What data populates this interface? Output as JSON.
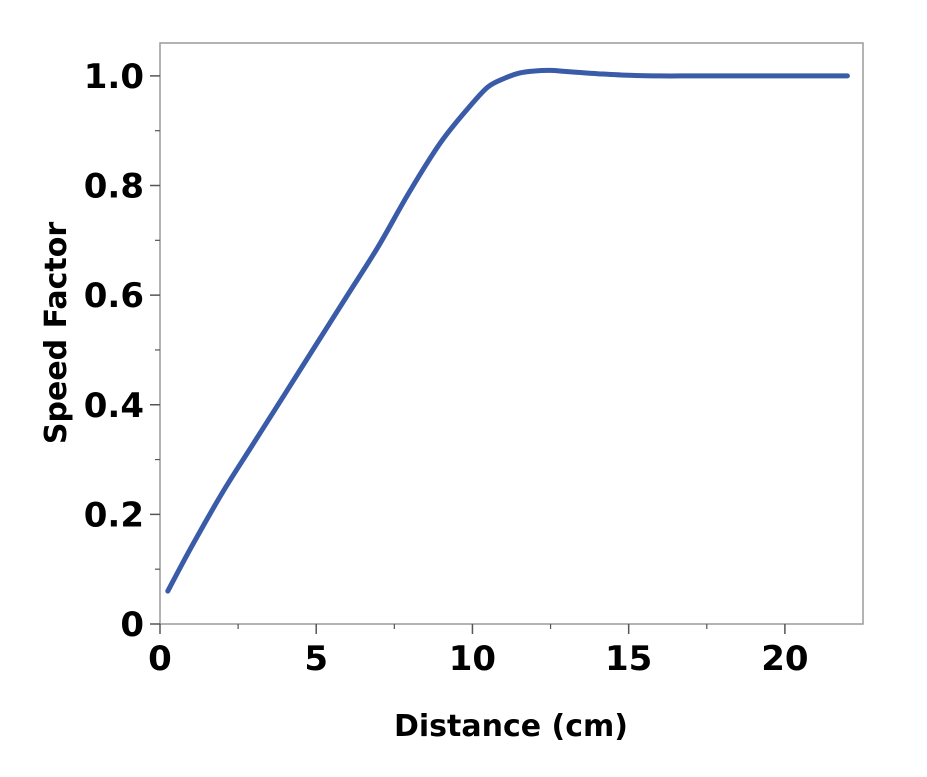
{
  "chart_data": {
    "type": "line",
    "title": "",
    "xlabel": "Distance (cm)",
    "ylabel": "Speed Factor",
    "xlim": [
      0,
      22.5
    ],
    "ylim": [
      0,
      1.06
    ],
    "x_ticks": [
      0,
      5,
      10,
      15,
      20
    ],
    "x_tick_labels": [
      "0",
      "5",
      "10",
      "15",
      "20"
    ],
    "y_ticks": [
      0,
      0.2,
      0.4,
      0.6,
      0.8,
      1.0
    ],
    "y_tick_labels": [
      "0",
      "0.2",
      "0.4",
      "0.6",
      "0.8",
      "1.0"
    ],
    "grid": false,
    "legend": false,
    "series": [
      {
        "color": "#3a5ba8",
        "x": [
          0.25,
          1,
          2,
          3,
          4,
          5,
          6,
          7,
          8,
          9,
          10,
          10.5,
          11,
          11.5,
          12,
          12.5,
          13,
          14,
          15,
          16,
          17,
          18,
          20,
          22
        ],
        "y": [
          0.06,
          0.14,
          0.24,
          0.33,
          0.42,
          0.51,
          0.6,
          0.69,
          0.79,
          0.88,
          0.95,
          0.98,
          0.995,
          1.005,
          1.009,
          1.01,
          1.008,
          1.004,
          1.001,
          1.0,
          1.0,
          1.0,
          1.0,
          1.0
        ]
      }
    ]
  }
}
